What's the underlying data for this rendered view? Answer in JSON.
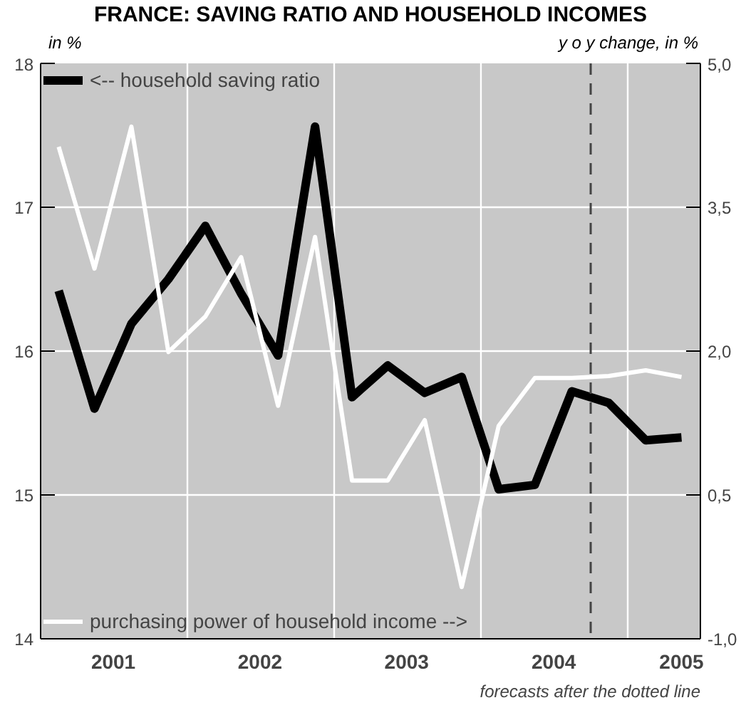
{
  "chart_data": {
    "type": "line",
    "title": "FRANCE: SAVING RATIO AND HOUSEHOLD INCOMES",
    "ylabel": "in %",
    "y2label": "y o y change, in %",
    "annotations": [
      "forecasts after the dotted line"
    ],
    "x": [
      "2001-02-15",
      "2001-05-15",
      "2001-08-15",
      "2001-11-15",
      "2002-02-15",
      "2002-05-15",
      "2002-08-15",
      "2002-11-15",
      "2003-02-15",
      "2003-05-15",
      "2003-08-15",
      "2003-11-15",
      "2004-02-15",
      "2004-05-15",
      "2004-08-15",
      "2004-11-15",
      "2005-02-15",
      "2005-05-15"
    ],
    "xlim": [
      "2001-01-01",
      "2005-07-01"
    ],
    "xticks": [
      {
        "value": "2001-07-01",
        "label": "2001"
      },
      {
        "value": "2002-01-01",
        "label": null
      },
      {
        "value": "2002-07-01",
        "label": "2002"
      },
      {
        "value": "2003-01-01",
        "label": null
      },
      {
        "value": "2003-07-01",
        "label": "2003"
      },
      {
        "value": "2004-01-01",
        "label": null
      },
      {
        "value": "2004-07-01",
        "label": "2004"
      },
      {
        "value": "2005-01-01",
        "label": null
      },
      {
        "value": "2005-05-15",
        "label": "2005"
      }
    ],
    "ylim": [
      14,
      18
    ],
    "yticks": [
      14,
      15,
      16,
      17,
      18
    ],
    "y2lim": [
      -1.0,
      5.0
    ],
    "y2ticks": [
      {
        "value": -1.0,
        "label": "-1,0"
      },
      {
        "value": 0.5,
        "label": "0,5"
      },
      {
        "value": 2.0,
        "label": "2,0"
      },
      {
        "value": 3.5,
        "label": "3,5"
      },
      {
        "value": 5.0,
        "label": "5,0"
      }
    ],
    "grid": true,
    "legend": "left",
    "line_style": "solid",
    "ref_lines": [
      {
        "axis": "x",
        "value": "2004-10-01",
        "color": "#444444",
        "line_style": "dashed"
      }
    ],
    "series": [
      {
        "name": "<-- household saving ratio",
        "color": "#000000",
        "values": [
          16.42,
          15.6,
          16.19,
          16.5,
          16.87,
          16.4,
          15.97,
          17.56,
          15.68,
          15.9,
          15.71,
          15.82,
          15.04,
          15.07,
          15.72,
          15.64,
          15.38,
          15.4
        ]
      },
      {
        "name": "purchasing power of household income -->",
        "color": "#ffffff",
        "axis": "y2",
        "values": [
          4.13,
          2.86,
          4.34,
          1.99,
          2.36,
          2.98,
          1.43,
          3.19,
          0.65,
          0.65,
          1.28,
          -0.46,
          1.22,
          1.72,
          1.72,
          1.74,
          1.8,
          1.73
        ]
      }
    ]
  }
}
